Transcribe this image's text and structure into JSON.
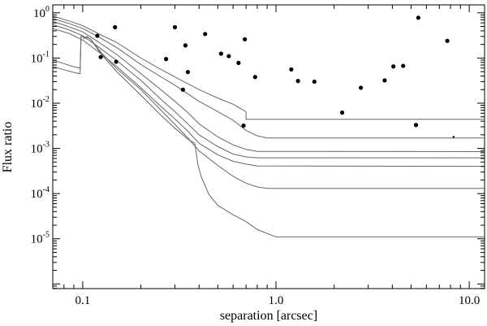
{
  "chart_data": {
    "type": "scatter",
    "xlabel": "separation [arcsec]",
    "ylabel": "Flux ratio",
    "xscale": "log",
    "yscale": "log",
    "xlim": [
      0.07,
      12.0
    ],
    "ylim": [
      7.9e-07,
      1.5
    ],
    "x_ticks": [
      {
        "value": 0.1,
        "label": "0.1"
      },
      {
        "value": 1.0,
        "label": "1.0"
      },
      {
        "value": 10.0,
        "label": "10.0"
      }
    ],
    "y_ticks": [
      {
        "value": 1,
        "base": "10",
        "exp": "0"
      },
      {
        "value": 0.1,
        "base": "10",
        "exp": "-1"
      },
      {
        "value": 0.01,
        "base": "10",
        "exp": "-2"
      },
      {
        "value": 0.001,
        "base": "10",
        "exp": "-3"
      },
      {
        "value": 0.0001,
        "base": "10",
        "exp": "-4"
      },
      {
        "value": 1e-05,
        "base": "10",
        "exp": "-5"
      }
    ],
    "points": [
      {
        "x": 0.119,
        "y": 0.31
      },
      {
        "x": 0.124,
        "y": 0.105
      },
      {
        "x": 0.147,
        "y": 0.48
      },
      {
        "x": 0.149,
        "y": 0.083
      },
      {
        "x": 0.27,
        "y": 0.095
      },
      {
        "x": 0.3,
        "y": 0.48
      },
      {
        "x": 0.33,
        "y": 0.02
      },
      {
        "x": 0.34,
        "y": 0.19
      },
      {
        "x": 0.35,
        "y": 0.049
      },
      {
        "x": 0.43,
        "y": 0.34
      },
      {
        "x": 0.52,
        "y": 0.125
      },
      {
        "x": 0.57,
        "y": 0.11
      },
      {
        "x": 0.64,
        "y": 0.078
      },
      {
        "x": 0.69,
        "y": 0.26
      },
      {
        "x": 0.68,
        "y": 0.0032
      },
      {
        "x": 0.78,
        "y": 0.038
      },
      {
        "x": 1.2,
        "y": 0.056
      },
      {
        "x": 1.3,
        "y": 0.031
      },
      {
        "x": 1.58,
        "y": 0.03
      },
      {
        "x": 2.2,
        "y": 0.0062
      },
      {
        "x": 2.75,
        "y": 0.022
      },
      {
        "x": 3.65,
        "y": 0.032
      },
      {
        "x": 4.05,
        "y": 0.065
      },
      {
        "x": 4.55,
        "y": 0.067
      },
      {
        "x": 5.3,
        "y": 0.0033
      },
      {
        "x": 5.45,
        "y": 0.78
      },
      {
        "x": 7.7,
        "y": 0.24
      },
      {
        "x": 8.3,
        "y": 0.0018,
        "small": true
      }
    ],
    "series": [
      {
        "values": [
          [
            0.07,
            0.85
          ],
          [
            0.085,
            0.66
          ],
          [
            0.1,
            0.52
          ],
          [
            0.12,
            0.35
          ],
          [
            0.15,
            0.22
          ],
          [
            0.2,
            0.1
          ],
          [
            0.25,
            0.058
          ],
          [
            0.3,
            0.038
          ],
          [
            0.4,
            0.02
          ],
          [
            0.5,
            0.013
          ],
          [
            0.6,
            0.0095
          ],
          [
            0.7,
            0.0065
          ],
          [
            0.7,
            0.0044
          ],
          [
            11.9,
            0.0044
          ]
        ]
      },
      {
        "values": [
          [
            0.07,
            0.75
          ],
          [
            0.085,
            0.58
          ],
          [
            0.1,
            0.45
          ],
          [
            0.12,
            0.3
          ],
          [
            0.15,
            0.17
          ],
          [
            0.2,
            0.072
          ],
          [
            0.25,
            0.04
          ],
          [
            0.3,
            0.025
          ],
          [
            0.4,
            0.011
          ],
          [
            0.5,
            0.0065
          ],
          [
            0.6,
            0.0042
          ],
          [
            0.7,
            0.0025
          ],
          [
            0.8,
            0.0019
          ],
          [
            0.9,
            0.0017
          ],
          [
            11.9,
            0.0017
          ]
        ]
      },
      {
        "values": [
          [
            0.07,
            0.65
          ],
          [
            0.085,
            0.49
          ],
          [
            0.1,
            0.38
          ],
          [
            0.12,
            0.23
          ],
          [
            0.15,
            0.12
          ],
          [
            0.2,
            0.045
          ],
          [
            0.25,
            0.021
          ],
          [
            0.3,
            0.011
          ],
          [
            0.35,
            0.0062
          ],
          [
            0.4,
            0.0035
          ],
          [
            0.5,
            0.0018
          ],
          [
            0.6,
            0.0012
          ],
          [
            0.7,
            0.00095
          ],
          [
            0.8,
            0.00086
          ],
          [
            11.9,
            0.00085
          ]
        ]
      },
      {
        "values": [
          [
            0.07,
            0.55
          ],
          [
            0.085,
            0.42
          ],
          [
            0.1,
            0.31
          ],
          [
            0.12,
            0.18
          ],
          [
            0.15,
            0.088
          ],
          [
            0.2,
            0.032
          ],
          [
            0.25,
            0.013
          ],
          [
            0.3,
            0.0065
          ],
          [
            0.35,
            0.0035
          ],
          [
            0.4,
            0.002
          ],
          [
            0.5,
            0.0011
          ],
          [
            0.6,
            0.00075
          ],
          [
            0.7,
            0.00065
          ],
          [
            0.8,
            0.00062
          ],
          [
            11.9,
            0.00062
          ]
        ]
      },
      {
        "values": [
          [
            0.07,
            0.45
          ],
          [
            0.085,
            0.35
          ],
          [
            0.1,
            0.25
          ],
          [
            0.12,
            0.14
          ],
          [
            0.15,
            0.065
          ],
          [
            0.2,
            0.022
          ],
          [
            0.25,
            0.009
          ],
          [
            0.3,
            0.0045
          ],
          [
            0.35,
            0.0024
          ],
          [
            0.4,
            0.0013
          ],
          [
            0.5,
            0.00072
          ],
          [
            0.6,
            0.00052
          ],
          [
            0.7,
            0.00045
          ],
          [
            0.8,
            0.00041
          ],
          [
            11.9,
            0.0004
          ]
        ]
      },
      {
        "values": [
          [
            0.07,
            0.09
          ],
          [
            0.08,
            0.075
          ],
          [
            0.09,
            0.064
          ],
          [
            0.097,
            0.06
          ],
          [
            0.098,
            0.3
          ],
          [
            0.1,
            0.3
          ],
          [
            0.102,
            0.27
          ],
          [
            0.105,
            0.29
          ],
          [
            0.11,
            0.26
          ],
          [
            0.125,
            0.13
          ],
          [
            0.15,
            0.058
          ],
          [
            0.2,
            0.02
          ],
          [
            0.25,
            0.0075
          ],
          [
            0.3,
            0.0034
          ],
          [
            0.35,
            0.0017
          ],
          [
            0.4,
            0.00088
          ],
          [
            0.5,
            0.00042
          ],
          [
            0.6,
            0.00024
          ],
          [
            0.7,
            0.00017
          ],
          [
            0.8,
            0.00014
          ],
          [
            0.9,
            0.00013
          ],
          [
            11.9,
            0.00013
          ]
        ]
      },
      {
        "values": [
          [
            0.07,
            0.065
          ],
          [
            0.08,
            0.055
          ],
          [
            0.09,
            0.048
          ],
          [
            0.097,
            0.045
          ],
          [
            0.098,
            0.3
          ],
          [
            0.1,
            0.31
          ],
          [
            0.102,
            0.28
          ],
          [
            0.105,
            0.3
          ],
          [
            0.11,
            0.26
          ],
          [
            0.125,
            0.12
          ],
          [
            0.15,
            0.05
          ],
          [
            0.2,
            0.015
          ],
          [
            0.25,
            0.0058
          ],
          [
            0.3,
            0.0028
          ],
          [
            0.35,
            0.0016
          ],
          [
            0.38,
            0.0013
          ],
          [
            0.385,
            0.0009
          ],
          [
            0.395,
            0.00043
          ],
          [
            0.41,
            0.00024
          ],
          [
            0.45,
            9.5e-05
          ],
          [
            0.5,
            5.5e-05
          ],
          [
            0.6,
            3.4e-05
          ],
          [
            0.7,
            2.4e-05
          ],
          [
            0.8,
            1.6e-05
          ],
          [
            1.0,
            1.1e-05
          ],
          [
            11.9,
            1.1e-05
          ]
        ]
      }
    ]
  }
}
